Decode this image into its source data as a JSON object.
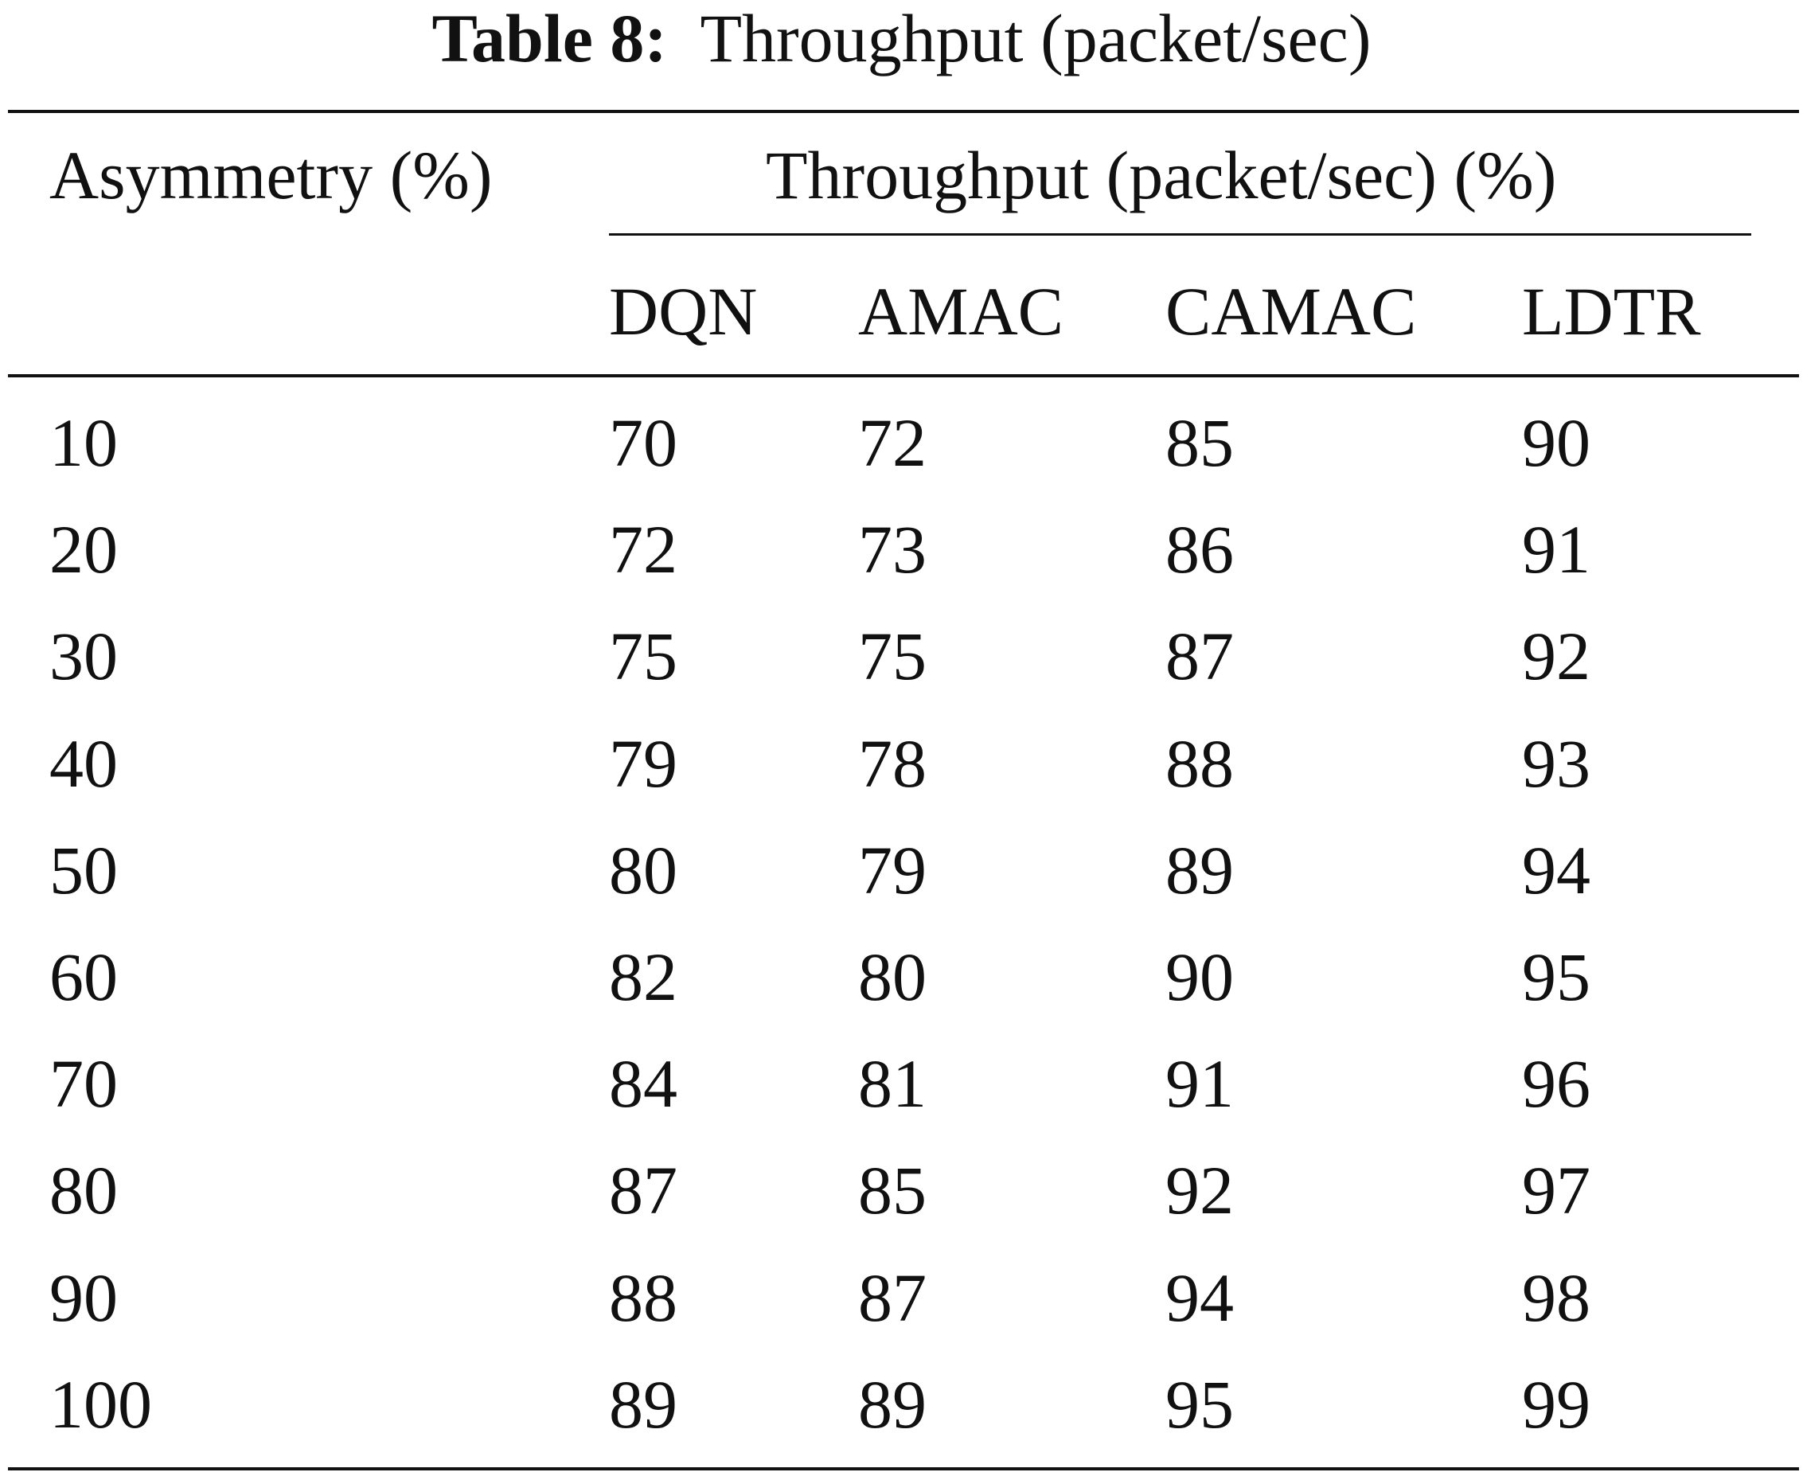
{
  "table": {
    "caption_label": "Table 8:",
    "caption_text": "Throughput (packet/sec)",
    "row_header": "Asymmetry (%)",
    "group_header": "Throughput (packet/sec) (%)",
    "columns": [
      "DQN",
      "AMAC",
      "CAMAC",
      "LDTR"
    ],
    "rows": [
      {
        "asymmetry": "10",
        "values": [
          "70",
          "72",
          "85",
          "90"
        ]
      },
      {
        "asymmetry": "20",
        "values": [
          "72",
          "73",
          "86",
          "91"
        ]
      },
      {
        "asymmetry": "30",
        "values": [
          "75",
          "75",
          "87",
          "92"
        ]
      },
      {
        "asymmetry": "40",
        "values": [
          "79",
          "78",
          "88",
          "93"
        ]
      },
      {
        "asymmetry": "50",
        "values": [
          "80",
          "79",
          "89",
          "94"
        ]
      },
      {
        "asymmetry": "60",
        "values": [
          "82",
          "80",
          "90",
          "95"
        ]
      },
      {
        "asymmetry": "70",
        "values": [
          "84",
          "81",
          "91",
          "96"
        ]
      },
      {
        "asymmetry": "80",
        "values": [
          "87",
          "85",
          "92",
          "97"
        ]
      },
      {
        "asymmetry": "90",
        "values": [
          "88",
          "87",
          "94",
          "98"
        ]
      },
      {
        "asymmetry": "100",
        "values": [
          "89",
          "89",
          "95",
          "99"
        ]
      }
    ]
  }
}
